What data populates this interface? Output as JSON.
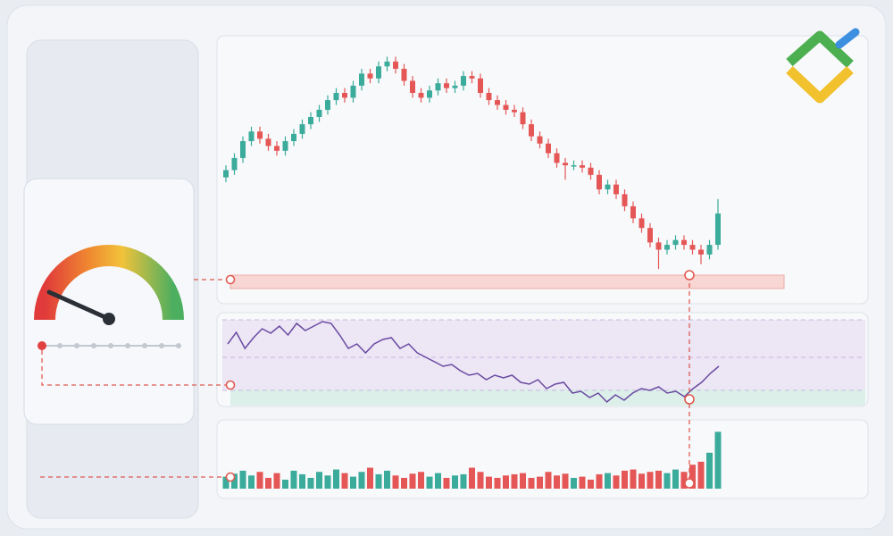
{
  "chart_data": [
    {
      "type": "candlestick",
      "open": [
        45,
        48,
        53,
        60,
        64,
        61,
        58,
        56,
        60,
        63,
        67,
        70,
        73,
        77,
        80,
        78,
        83,
        88,
        86,
        91,
        93,
        90,
        85,
        80,
        78,
        81,
        84,
        82,
        83,
        87,
        86,
        80,
        77,
        75,
        73,
        72,
        67,
        62,
        59,
        55,
        51,
        50,
        50,
        49,
        46,
        40,
        42,
        38,
        33,
        28,
        24,
        18,
        15,
        17,
        19,
        17,
        15,
        13,
        17
      ],
      "high": [
        50,
        55,
        62,
        66,
        66,
        63,
        60,
        62,
        65,
        69,
        72,
        75,
        79,
        82,
        82,
        85,
        90,
        90,
        93,
        95,
        95,
        92,
        87,
        82,
        83,
        86,
        86,
        85,
        89,
        89,
        88,
        82,
        79,
        77,
        75,
        74,
        69,
        64,
        61,
        57,
        53,
        52,
        52,
        51,
        48,
        44,
        44,
        40,
        35,
        30,
        26,
        20,
        19,
        21,
        21,
        19,
        17,
        19,
        36
      ],
      "low": [
        43,
        46,
        51,
        58,
        59,
        56,
        54,
        54,
        58,
        61,
        65,
        68,
        71,
        75,
        76,
        76,
        81,
        84,
        84,
        89,
        88,
        83,
        78,
        76,
        76,
        79,
        80,
        80,
        81,
        84,
        78,
        75,
        73,
        71,
        70,
        65,
        60,
        57,
        53,
        49,
        44,
        48,
        47,
        44,
        38,
        38,
        36,
        31,
        26,
        22,
        16,
        7,
        13,
        15,
        15,
        13,
        9,
        11,
        15
      ],
      "close": [
        48,
        53,
        60,
        64,
        61,
        58,
        56,
        60,
        63,
        67,
        70,
        73,
        77,
        80,
        78,
        83,
        88,
        86,
        91,
        93,
        90,
        85,
        80,
        78,
        81,
        84,
        82,
        83,
        87,
        86,
        80,
        77,
        75,
        73,
        72,
        67,
        62,
        59,
        55,
        51,
        50,
        50,
        49,
        46,
        40,
        42,
        38,
        33,
        28,
        24,
        18,
        15,
        17,
        19,
        17,
        15,
        13,
        17,
        30
      ],
      "up_color": "#3bab9b",
      "down_color": "#e55656",
      "ylim": [
        0,
        100
      ]
    },
    {
      "type": "line",
      "values": [
        70,
        83,
        65,
        77,
        87,
        82,
        90,
        80,
        93,
        85,
        90,
        95,
        93,
        80,
        65,
        70,
        60,
        70,
        75,
        77,
        65,
        70,
        60,
        55,
        50,
        45,
        47,
        40,
        35,
        37,
        30,
        35,
        32,
        35,
        27,
        25,
        30,
        20,
        25,
        27,
        15,
        17,
        10,
        15,
        5,
        13,
        7,
        15,
        20,
        18,
        22,
        15,
        17,
        11,
        20,
        27,
        37,
        45
      ],
      "color": "#6a4aa0",
      "ylim": [
        0,
        100
      ]
    },
    {
      "type": "bar",
      "values": [
        20,
        25,
        30,
        22,
        28,
        18,
        26,
        15,
        30,
        24,
        18,
        28,
        22,
        32,
        26,
        20,
        28,
        35,
        24,
        30,
        22,
        18,
        25,
        28,
        20,
        26,
        18,
        22,
        24,
        35,
        28,
        20,
        18,
        22,
        24,
        26,
        18,
        20,
        28,
        22,
        25,
        18,
        20,
        15,
        24,
        26,
        22,
        30,
        32,
        25,
        28,
        30,
        26,
        32,
        28,
        40,
        45,
        60,
        95
      ],
      "ylim": [
        0,
        100
      ]
    }
  ]
}
